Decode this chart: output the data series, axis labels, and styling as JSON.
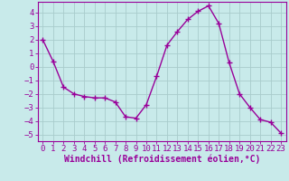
{
  "x": [
    0,
    1,
    2,
    3,
    4,
    5,
    6,
    7,
    8,
    9,
    10,
    11,
    12,
    13,
    14,
    15,
    16,
    17,
    18,
    19,
    20,
    21,
    22,
    23
  ],
  "y": [
    2.0,
    0.4,
    -1.5,
    -2.0,
    -2.2,
    -2.3,
    -2.3,
    -2.6,
    -3.7,
    -3.8,
    -2.8,
    -0.7,
    1.6,
    2.6,
    3.5,
    4.1,
    4.5,
    3.2,
    0.3,
    -2.0,
    -3.0,
    -3.9,
    -4.1,
    -4.9
  ],
  "line_color": "#990099",
  "marker": "+",
  "bg_color": "#c8eaea",
  "grid_color": "#a8cccc",
  "xlabel": "Windchill (Refroidissement éolien,°C)",
  "xlabel_color": "#990099",
  "tick_color": "#990099",
  "spine_color": "#990099",
  "ylim": [
    -5.5,
    4.8
  ],
  "xlim": [
    -0.5,
    23.5
  ],
  "yticks": [
    -5,
    -4,
    -3,
    -2,
    -1,
    0,
    1,
    2,
    3,
    4
  ],
  "xticks": [
    0,
    1,
    2,
    3,
    4,
    5,
    6,
    7,
    8,
    9,
    10,
    11,
    12,
    13,
    14,
    15,
    16,
    17,
    18,
    19,
    20,
    21,
    22,
    23
  ],
  "line_width": 1.0,
  "marker_size": 4,
  "font_size": 6.5,
  "xlabel_fontsize": 7.0
}
